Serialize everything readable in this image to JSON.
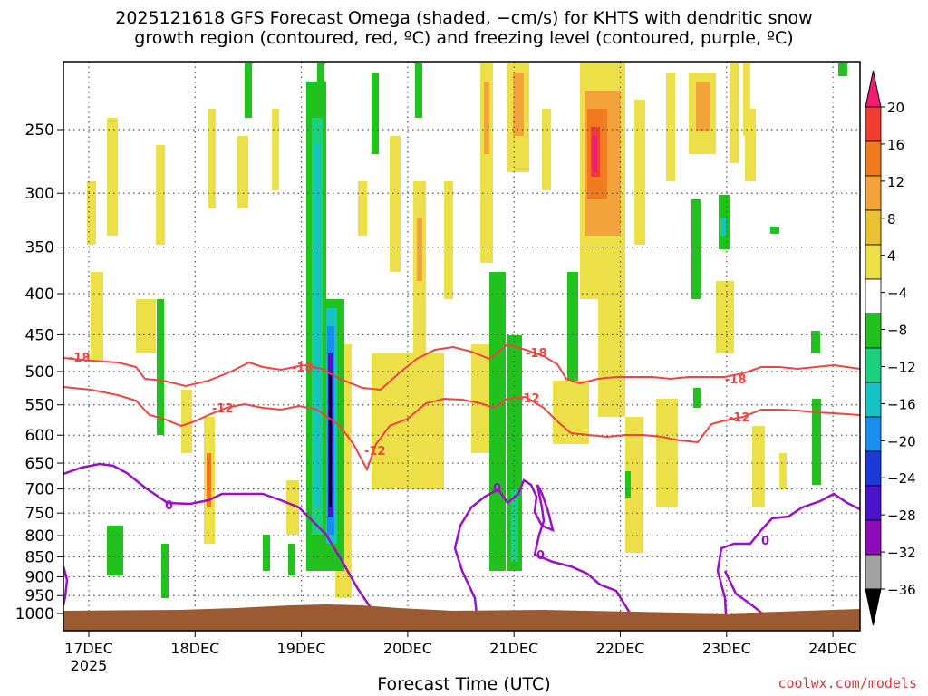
{
  "title_line1": "2025121618 GFS Forecast Omega (shaded, −cm/s) for KHTS with dendritic snow",
  "title_line2": "growth region (contoured, red, ºC) and freezing level (contoured, purple, ºC)",
  "credit": "coolwx.com/models",
  "chart_data": {
    "type": "heatmap",
    "title": "2025121618 GFS Forecast Omega (shaded, −cm/s) for KHTS with dendritic snow growth region (contoured, red, ºC) and freezing level (contoured, purple, ºC)",
    "xlabel": "Forecast Time (UTC)",
    "x_ticks": [
      "17DEC",
      "18DEC",
      "19DEC",
      "20DEC",
      "21DEC",
      "22DEC",
      "23DEC",
      "24DEC"
    ],
    "x_year_label": "2025",
    "y_scale": "log",
    "y_ticks": [
      250,
      300,
      350,
      400,
      450,
      500,
      550,
      600,
      650,
      700,
      750,
      800,
      850,
      900,
      950,
      1000
    ],
    "colorbar": {
      "labels": [
        "20",
        "16",
        "12",
        "8",
        "4",
        "−4",
        "−8",
        "−12",
        "−16",
        "−20",
        "−24",
        "−28",
        "−32",
        "−36"
      ],
      "colors": [
        "#f01c6f",
        "#ee3e33",
        "#f07a1e",
        "#f2a33a",
        "#e9c233",
        "#ecdf48",
        "#ffffff",
        "#22c21e",
        "#1cd07e",
        "#19c2c2",
        "#1a8ef0",
        "#1c3ad6",
        "#4a14c8",
        "#8c0cbc",
        "#a2a2a2",
        "#000000"
      ]
    },
    "contours": {
      "dgz": {
        "color": "#ee4444",
        "labels": [
          "-18",
          "-12"
        ]
      },
      "freezing": {
        "color": "#9a10c4",
        "labels": [
          "0"
        ]
      }
    },
    "annotations": [
      "-18",
      "-18",
      "-18",
      "-18",
      "-12",
      "-12",
      "-12",
      "-12",
      "0",
      "0",
      "0",
      "0"
    ]
  }
}
